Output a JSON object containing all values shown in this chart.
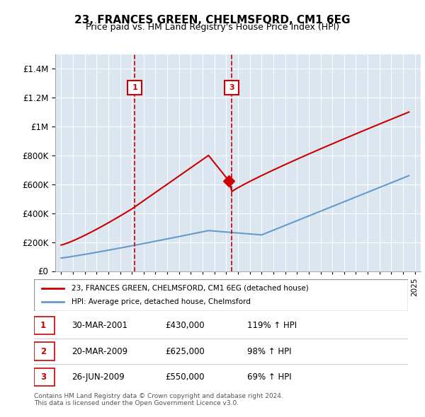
{
  "title": "23, FRANCES GREEN, CHELMSFORD, CM1 6EG",
  "subtitle": "Price paid vs. HM Land Registry's House Price Index (HPI)",
  "legend_label_red": "23, FRANCES GREEN, CHELMSFORD, CM1 6EG (detached house)",
  "legend_label_blue": "HPI: Average price, detached house, Chelmsford",
  "footer1": "Contains HM Land Registry data © Crown copyright and database right 2024.",
  "footer2": "This data is licensed under the Open Government Licence v3.0.",
  "table_rows": [
    {
      "num": 1,
      "date": "30-MAR-2001",
      "price": "£430,000",
      "hpi": "119% ↑ HPI"
    },
    {
      "num": 2,
      "date": "20-MAR-2009",
      "price": "£625,000",
      "hpi": "98% ↑ HPI"
    },
    {
      "num": 3,
      "date": "26-JUN-2009",
      "price": "£550,000",
      "hpi": "69% ↑ HPI"
    }
  ],
  "ylim": [
    0,
    1500000
  ],
  "yticks": [
    0,
    200000,
    400000,
    600000,
    800000,
    1000000,
    1200000,
    1400000
  ],
  "bg_color": "#dce6f1",
  "red_color": "#cc0000",
  "blue_color": "#6699cc",
  "dashed_color": "#cc0000",
  "marker1_x": 2001.25,
  "marker1_y": 430000,
  "marker2_x": 2009.22,
  "marker2_y": 625000,
  "marker3_x": 2009.48,
  "marker3_y": 550000,
  "xmin": 1994.5,
  "xmax": 2025.5
}
